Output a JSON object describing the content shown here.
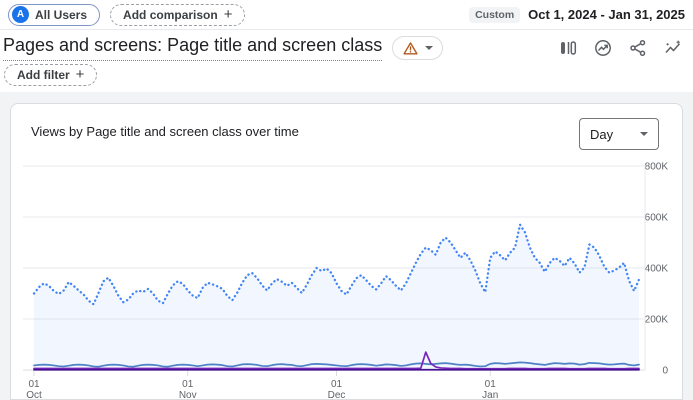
{
  "top_bar": {
    "avatar_letter": "A",
    "all_users_label": "All Users",
    "add_comparison_label": "Add comparison",
    "plus": "+",
    "custom_badge": "Custom",
    "date_range": "Oct 1, 2024 - Jan 31, 2025"
  },
  "header": {
    "title": "Pages and screens: Page title and screen class",
    "icons": [
      "warning-icon",
      "chevron-down-icon",
      "customize-report-icon",
      "report-snapshot-icon",
      "share-icon",
      "insights-icon"
    ]
  },
  "filter_bar": {
    "add_filter_label": "Add filter",
    "plus": "+"
  },
  "card": {
    "title": "Views by Page title and screen class over time",
    "granularity_value": "Day"
  },
  "chart_data": {
    "type": "line",
    "title": "Views by Page title and screen class over time",
    "x_range": [
      "Oct 1, 2024",
      "Jan 31, 2025"
    ],
    "total_days": 123,
    "ylim": [
      0,
      800000
    ],
    "value_unit": "thousands",
    "grid": true,
    "legend": "none",
    "y_ticks": [
      {
        "label": "800K",
        "value_k": 800
      },
      {
        "label": "600K",
        "value_k": 600
      },
      {
        "label": "400K",
        "value_k": 400
      },
      {
        "label": "200K",
        "value_k": 200
      },
      {
        "label": "0",
        "value_k": 0
      }
    ],
    "x_ticks": [
      {
        "day": "01",
        "month": "Oct",
        "day_offset": 0
      },
      {
        "day": "01",
        "month": "Nov",
        "day_offset": 31
      },
      {
        "day": "01",
        "month": "Dec",
        "day_offset": 61
      },
      {
        "day": "01",
        "month": "Jan",
        "day_offset": 92
      }
    ],
    "series": [
      {
        "name": "views-total",
        "style": "dotted",
        "color": "#4285f4",
        "area_fill": "rgba(66,133,244,0.07)",
        "values_k": [
          300,
          325,
          340,
          330,
          310,
          298,
          312,
          345,
          330,
          312,
          296,
          272,
          258,
          302,
          348,
          362,
          330,
          292,
          266,
          276,
          300,
          312,
          306,
          318,
          300,
          272,
          262,
          300,
          332,
          348,
          338,
          312,
          292,
          282,
          322,
          342,
          336,
          328,
          318,
          290,
          274,
          304,
          342,
          372,
          380,
          360,
          332,
          312,
          340,
          356,
          346,
          330,
          342,
          322,
          302,
          334,
          372,
          400,
          388,
          398,
          380,
          340,
          310,
          296,
          330,
          360,
          372,
          352,
          330,
          316,
          340,
          368,
          352,
          330,
          312,
          340,
          380,
          420,
          456,
          480,
          470,
          452,
          500,
          519,
          500,
          470,
          440,
          460,
          430,
          390,
          340,
          305,
          440,
          465,
          450,
          430,
          460,
          480,
          570,
          540,
          480,
          440,
          420,
          385,
          420,
          440,
          428,
          408,
          440,
          418,
          382,
          402,
          492,
          480,
          448,
          405,
          382,
          390,
          402,
          420,
          350,
          310,
          355
        ]
      },
      {
        "name": "series-2",
        "style": "solid",
        "color": "#4d82c4",
        "values_k": [
          18,
          20,
          21,
          20,
          18,
          15,
          14,
          17,
          20,
          21,
          20,
          18,
          14,
          13,
          17,
          20,
          21,
          20,
          18,
          14,
          13,
          17,
          20,
          21,
          20,
          18,
          14,
          13,
          17,
          20,
          21,
          20,
          18,
          15,
          18,
          21,
          22,
          21,
          19,
          15,
          14,
          18,
          22,
          23,
          22,
          20,
          16,
          15,
          19,
          22,
          23,
          21,
          20,
          16,
          15,
          19,
          23,
          24,
          23,
          22,
          20,
          18,
          16,
          15,
          19,
          22,
          23,
          22,
          20,
          17,
          19,
          22,
          21,
          19,
          16,
          18,
          22,
          25,
          26,
          24,
          22,
          24,
          26,
          27,
          25,
          22,
          20,
          21,
          19,
          16,
          14,
          15,
          24,
          27,
          26,
          24,
          26,
          28,
          30,
          29,
          27,
          24,
          22,
          20,
          24,
          27,
          26,
          24,
          26,
          25,
          21,
          23,
          28,
          27,
          26,
          23,
          21,
          22,
          24,
          25,
          20,
          18,
          21
        ]
      },
      {
        "name": "series-3",
        "style": "solid",
        "color": "#7627bb",
        "values_k": [
          6,
          6,
          6,
          6,
          6,
          6,
          6,
          6,
          6,
          6,
          6,
          6,
          6,
          6,
          6,
          6,
          6,
          6,
          6,
          6,
          6,
          6,
          6,
          6,
          6,
          6,
          6,
          6,
          6,
          6,
          6,
          6,
          6,
          6,
          6,
          6,
          6,
          6,
          6,
          6,
          6,
          6,
          6,
          6,
          6,
          6,
          6,
          6,
          6,
          6,
          6,
          6,
          6,
          6,
          6,
          6,
          6,
          6,
          6,
          6,
          6,
          6,
          6,
          6,
          6,
          6,
          6,
          6,
          6,
          6,
          6,
          6,
          6,
          6,
          6,
          6,
          6,
          6,
          7,
          70,
          26,
          12,
          8,
          7,
          6,
          6,
          6,
          5,
          5,
          5,
          5,
          5,
          5,
          5,
          5,
          5,
          6,
          6,
          6,
          6,
          5,
          5,
          5,
          5,
          6,
          6,
          6,
          6,
          5,
          5,
          5,
          5,
          6,
          6,
          6,
          6,
          5,
          5,
          5,
          5,
          6,
          6,
          6
        ]
      },
      {
        "name": "series-4",
        "style": "solid",
        "color": "#470e8e",
        "values_k": [
          1,
          1,
          1,
          1,
          1,
          1,
          1,
          1,
          1,
          1,
          1,
          1,
          1,
          1,
          1,
          1,
          1,
          1,
          1,
          1,
          1,
          1,
          1,
          1,
          1,
          1,
          1,
          1,
          1,
          1,
          1,
          1,
          1,
          1,
          1,
          1,
          1,
          1,
          1,
          1,
          1,
          1,
          1,
          1,
          1,
          1,
          1,
          1,
          1,
          1,
          1,
          1,
          1,
          1,
          1,
          1,
          1,
          1,
          1,
          1,
          1,
          1,
          1,
          1,
          1,
          1,
          1,
          1,
          1,
          1,
          1,
          1,
          1,
          1,
          1,
          1,
          1,
          1,
          1,
          1,
          1,
          1,
          1,
          1,
          1,
          1,
          1,
          1,
          1,
          1,
          1,
          1,
          1,
          1,
          1,
          1,
          1,
          1,
          1,
          1,
          1,
          1,
          1,
          1,
          1,
          1,
          1,
          1,
          1,
          1,
          1,
          1,
          1,
          1,
          1,
          1,
          1,
          1,
          1,
          1,
          1,
          1,
          1
        ]
      }
    ]
  }
}
